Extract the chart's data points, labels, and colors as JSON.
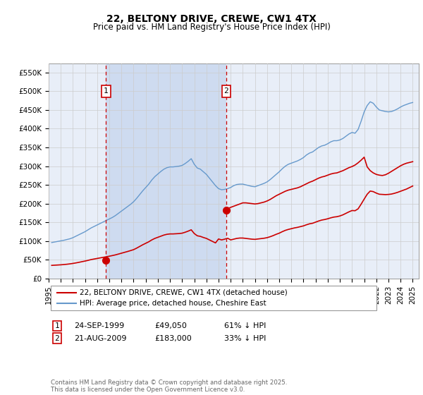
{
  "title": "22, BELTONY DRIVE, CREWE, CW1 4TX",
  "subtitle": "Price paid vs. HM Land Registry's House Price Index (HPI)",
  "plot_bg": "#e8eef8",
  "ylim": [
    0,
    575000
  ],
  "yticks": [
    0,
    50000,
    100000,
    150000,
    200000,
    250000,
    300000,
    350000,
    400000,
    450000,
    500000,
    550000
  ],
  "ytick_labels": [
    "£0",
    "£50K",
    "£100K",
    "£150K",
    "£200K",
    "£250K",
    "£300K",
    "£350K",
    "£400K",
    "£450K",
    "£500K",
    "£550K"
  ],
  "xlim_start": 1995.25,
  "xlim_end": 2025.5,
  "xticks": [
    1995,
    1996,
    1997,
    1998,
    1999,
    2000,
    2001,
    2002,
    2003,
    2004,
    2005,
    2006,
    2007,
    2008,
    2009,
    2010,
    2011,
    2012,
    2013,
    2014,
    2015,
    2016,
    2017,
    2018,
    2019,
    2020,
    2021,
    2022,
    2023,
    2024,
    2025
  ],
  "red_line_color": "#cc0000",
  "blue_line_color": "#6699cc",
  "marker_color": "#cc0000",
  "vline_color": "#cc0000",
  "shade_color": "#ccd9f0",
  "transaction1_x": 1999.73,
  "transaction1_y": 49050,
  "transaction2_x": 2009.64,
  "transaction2_y": 183000,
  "legend_red": "22, BELTONY DRIVE, CREWE, CW1 4TX (detached house)",
  "legend_blue": "HPI: Average price, detached house, Cheshire East",
  "footer": "Contains HM Land Registry data © Crown copyright and database right 2025.\nThis data is licensed under the Open Government Licence v3.0.",
  "hpi_data_x": [
    1995.25,
    1995.5,
    1995.75,
    1996.0,
    1996.25,
    1996.5,
    1996.75,
    1997.0,
    1997.25,
    1997.5,
    1997.75,
    1998.0,
    1998.25,
    1998.5,
    1998.75,
    1999.0,
    1999.25,
    1999.5,
    1999.75,
    2000.0,
    2000.25,
    2000.5,
    2000.75,
    2001.0,
    2001.25,
    2001.5,
    2001.75,
    2002.0,
    2002.25,
    2002.5,
    2002.75,
    2003.0,
    2003.25,
    2003.5,
    2003.75,
    2004.0,
    2004.25,
    2004.5,
    2004.75,
    2005.0,
    2005.25,
    2005.5,
    2005.75,
    2006.0,
    2006.25,
    2006.5,
    2006.75,
    2007.0,
    2007.25,
    2007.5,
    2007.75,
    2008.0,
    2008.25,
    2008.5,
    2008.75,
    2009.0,
    2009.25,
    2009.5,
    2009.75,
    2010.0,
    2010.25,
    2010.5,
    2010.75,
    2011.0,
    2011.25,
    2011.5,
    2011.75,
    2012.0,
    2012.25,
    2012.5,
    2012.75,
    2013.0,
    2013.25,
    2013.5,
    2013.75,
    2014.0,
    2014.25,
    2014.5,
    2014.75,
    2015.0,
    2015.25,
    2015.5,
    2015.75,
    2016.0,
    2016.25,
    2016.5,
    2016.75,
    2017.0,
    2017.25,
    2017.5,
    2017.75,
    2018.0,
    2018.25,
    2018.5,
    2018.75,
    2019.0,
    2019.25,
    2019.5,
    2019.75,
    2020.0,
    2020.25,
    2020.5,
    2020.75,
    2021.0,
    2021.25,
    2021.5,
    2021.75,
    2022.0,
    2022.25,
    2022.5,
    2022.75,
    2023.0,
    2023.25,
    2023.5,
    2023.75,
    2024.0,
    2024.25,
    2024.5,
    2024.75,
    2025.0
  ],
  "hpi_data_y": [
    96000,
    97500,
    99000,
    100500,
    102000,
    104000,
    106000,
    109000,
    113000,
    117000,
    121000,
    125000,
    130000,
    135000,
    139000,
    143000,
    147000,
    151000,
    155000,
    159000,
    163000,
    168000,
    174000,
    180000,
    186000,
    192000,
    198000,
    205000,
    214000,
    224000,
    234000,
    243000,
    252000,
    263000,
    272000,
    279000,
    286000,
    292000,
    296000,
    298000,
    298000,
    299000,
    300000,
    302000,
    307000,
    313000,
    320000,
    305000,
    295000,
    292000,
    285000,
    278000,
    268000,
    258000,
    248000,
    240000,
    237000,
    238000,
    240000,
    243000,
    248000,
    251000,
    252000,
    252000,
    250000,
    248000,
    246000,
    245000,
    248000,
    251000,
    254000,
    258000,
    264000,
    271000,
    278000,
    285000,
    293000,
    300000,
    305000,
    308000,
    311000,
    314000,
    318000,
    323000,
    330000,
    335000,
    338000,
    344000,
    350000,
    354000,
    356000,
    360000,
    365000,
    368000,
    368000,
    370000,
    374000,
    380000,
    386000,
    390000,
    388000,
    398000,
    420000,
    445000,
    462000,
    472000,
    468000,
    458000,
    450000,
    448000,
    446000,
    445000,
    446000,
    449000,
    453000,
    458000,
    462000,
    465000,
    468000,
    470000
  ],
  "red_data_x": [
    1995.25,
    1995.5,
    1995.75,
    1996.0,
    1996.25,
    1996.5,
    1996.75,
    1997.0,
    1997.25,
    1997.5,
    1997.75,
    1998.0,
    1998.25,
    1998.5,
    1998.75,
    1999.0,
    1999.25,
    1999.5,
    1999.75,
    2000.0,
    2000.25,
    2000.5,
    2000.75,
    2001.0,
    2001.25,
    2001.5,
    2001.75,
    2002.0,
    2002.25,
    2002.5,
    2002.75,
    2003.0,
    2003.25,
    2003.5,
    2003.75,
    2004.0,
    2004.25,
    2004.5,
    2004.75,
    2005.0,
    2005.25,
    2005.5,
    2005.75,
    2006.0,
    2006.25,
    2006.5,
    2006.75,
    2007.0,
    2007.25,
    2007.5,
    2007.75,
    2008.0,
    2008.25,
    2008.5,
    2008.75,
    2009.0,
    2009.25,
    2009.5,
    2009.75,
    2010.0,
    2010.25,
    2010.5,
    2010.75,
    2011.0,
    2011.25,
    2011.5,
    2011.75,
    2012.0,
    2012.25,
    2012.5,
    2012.75,
    2013.0,
    2013.25,
    2013.5,
    2013.75,
    2014.0,
    2014.25,
    2014.5,
    2014.75,
    2015.0,
    2015.25,
    2015.5,
    2015.75,
    2016.0,
    2016.25,
    2016.5,
    2016.75,
    2017.0,
    2017.25,
    2017.5,
    2017.75,
    2018.0,
    2018.25,
    2018.5,
    2018.75,
    2019.0,
    2019.25,
    2019.5,
    2019.75,
    2020.0,
    2020.25,
    2020.5,
    2020.75,
    2021.0,
    2021.25,
    2021.5,
    2021.75,
    2022.0,
    2022.25,
    2022.5,
    2022.75,
    2023.0,
    2023.25,
    2023.5,
    2023.75,
    2024.0,
    2024.25,
    2024.5,
    2024.75,
    2025.0
  ],
  "red_data_y": [
    35000,
    35500,
    36000,
    36500,
    37200,
    38000,
    39000,
    40200,
    41600,
    43200,
    44900,
    46500,
    48400,
    50500,
    52000,
    53500,
    55000,
    56500,
    58000,
    59500,
    61200,
    63000,
    65200,
    67500,
    69800,
    72000,
    74500,
    77000,
    81000,
    85500,
    90000,
    94000,
    98000,
    103000,
    107000,
    110000,
    113000,
    116000,
    118000,
    119000,
    119000,
    119500,
    120000,
    121000,
    123500,
    126500,
    130000,
    120000,
    114000,
    112500,
    109500,
    107000,
    103000,
    99000,
    95000,
    105500,
    103000,
    105000,
    107500,
    103000,
    105000,
    107000,
    108000,
    108000,
    107000,
    106000,
    105000,
    104500,
    105500,
    106500,
    107500,
    109000,
    111500,
    114500,
    118000,
    121000,
    125000,
    128500,
    131000,
    133000,
    135000,
    136500,
    138500,
    140500,
    143500,
    146000,
    147500,
    150500,
    153500,
    156000,
    157500,
    159500,
    162000,
    164000,
    165000,
    167000,
    170000,
    174000,
    178000,
    181500,
    181000,
    186000,
    198500,
    212000,
    225000,
    233500,
    232000,
    228000,
    225000,
    224500,
    224000,
    224500,
    225500,
    227500,
    230000,
    233000,
    236000,
    239000,
    243000,
    247000
  ],
  "red_data_x_seg2": [
    2009.64,
    2009.75,
    2010.0,
    2010.25,
    2010.5,
    2010.75,
    2011.0,
    2011.25,
    2011.5,
    2011.75,
    2012.0,
    2012.25,
    2012.5,
    2012.75,
    2013.0,
    2013.25,
    2013.5,
    2013.75,
    2014.0,
    2014.25,
    2014.5,
    2014.75,
    2015.0,
    2015.25,
    2015.5,
    2015.75,
    2016.0,
    2016.25,
    2016.5,
    2016.75,
    2017.0,
    2017.25,
    2017.5,
    2017.75,
    2018.0,
    2018.25,
    2018.5,
    2018.75,
    2019.0,
    2019.25,
    2019.5,
    2019.75,
    2020.0,
    2020.25,
    2020.5,
    2020.75,
    2021.0,
    2021.25,
    2021.5,
    2021.75,
    2022.0,
    2022.25,
    2022.5,
    2022.75,
    2023.0,
    2023.25,
    2023.5,
    2023.75,
    2024.0,
    2024.25,
    2024.5,
    2024.75,
    2025.0
  ],
  "red_data_y_seg2": [
    183000,
    186000,
    190000,
    193000,
    196000,
    199000,
    202000,
    202000,
    201000,
    200000,
    199000,
    200000,
    202000,
    204000,
    207000,
    211000,
    216000,
    221000,
    225000,
    229000,
    233000,
    236000,
    238000,
    240000,
    242000,
    245000,
    249000,
    253000,
    257000,
    260000,
    264000,
    268000,
    271000,
    273000,
    276000,
    279000,
    281000,
    282000,
    285000,
    288000,
    292000,
    296000,
    299000,
    303000,
    309000,
    316000,
    324000,
    298000,
    288000,
    282000,
    278000,
    276000,
    275000,
    277000,
    281000,
    286000,
    291000,
    296000,
    301000,
    305000,
    308000,
    310000,
    312000
  ]
}
